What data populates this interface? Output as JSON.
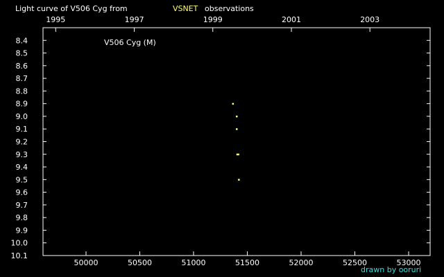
{
  "chart_data": {
    "type": "scatter",
    "title_prefix": "Light curve of V506 Cyg from",
    "title_source": "VSNET",
    "title_suffix": "observations",
    "star_label": "V506 Cyg (M)",
    "credit": "drawn by ooruri",
    "x_range": [
      49600,
      53200
    ],
    "y_range": [
      8.3,
      10.1
    ],
    "y_inverted": true,
    "x_ticks": [
      50000,
      50500,
      51000,
      51500,
      52000,
      52500,
      53000
    ],
    "x_tick_labels": [
      "50000",
      "50500",
      "51000",
      "51500",
      "52000",
      "52500",
      "53000"
    ],
    "y_ticks": [
      8.4,
      8.5,
      8.6,
      8.7,
      8.8,
      8.9,
      9.0,
      9.1,
      9.2,
      9.3,
      9.4,
      9.5,
      9.6,
      9.7,
      9.8,
      9.9,
      10.0,
      10.1
    ],
    "y_tick_labels": [
      "8.4",
      "8.5",
      "8.6",
      "8.7",
      "8.8",
      "8.9",
      "9.0",
      "9.1",
      "9.2",
      "9.3",
      "9.4",
      "9.5",
      "9.6",
      "9.7",
      "9.8",
      "9.9",
      "10.0",
      "10.1"
    ],
    "year_ticks": [
      {
        "label": "1995",
        "x": 49718
      },
      {
        "label": "1997",
        "x": 50449
      },
      {
        "label": "1999",
        "x": 51179
      },
      {
        "label": "2001",
        "x": 51910
      },
      {
        "label": "2003",
        "x": 52640
      }
    ],
    "grid": false,
    "colors": {
      "background": "#000000",
      "axes": "#ffffff",
      "points": "#ffff66",
      "source": "#ffff66",
      "credit": "#33dddd"
    },
    "series": [
      {
        "points": [
          {
            "x": 51365,
            "y": 8.9
          },
          {
            "x": 51400,
            "y": 9.0
          },
          {
            "x": 51400,
            "y": 9.1
          },
          {
            "x": 51405,
            "y": 9.3
          },
          {
            "x": 51415,
            "y": 9.3
          },
          {
            "x": 51420,
            "y": 9.5
          }
        ]
      }
    ]
  }
}
